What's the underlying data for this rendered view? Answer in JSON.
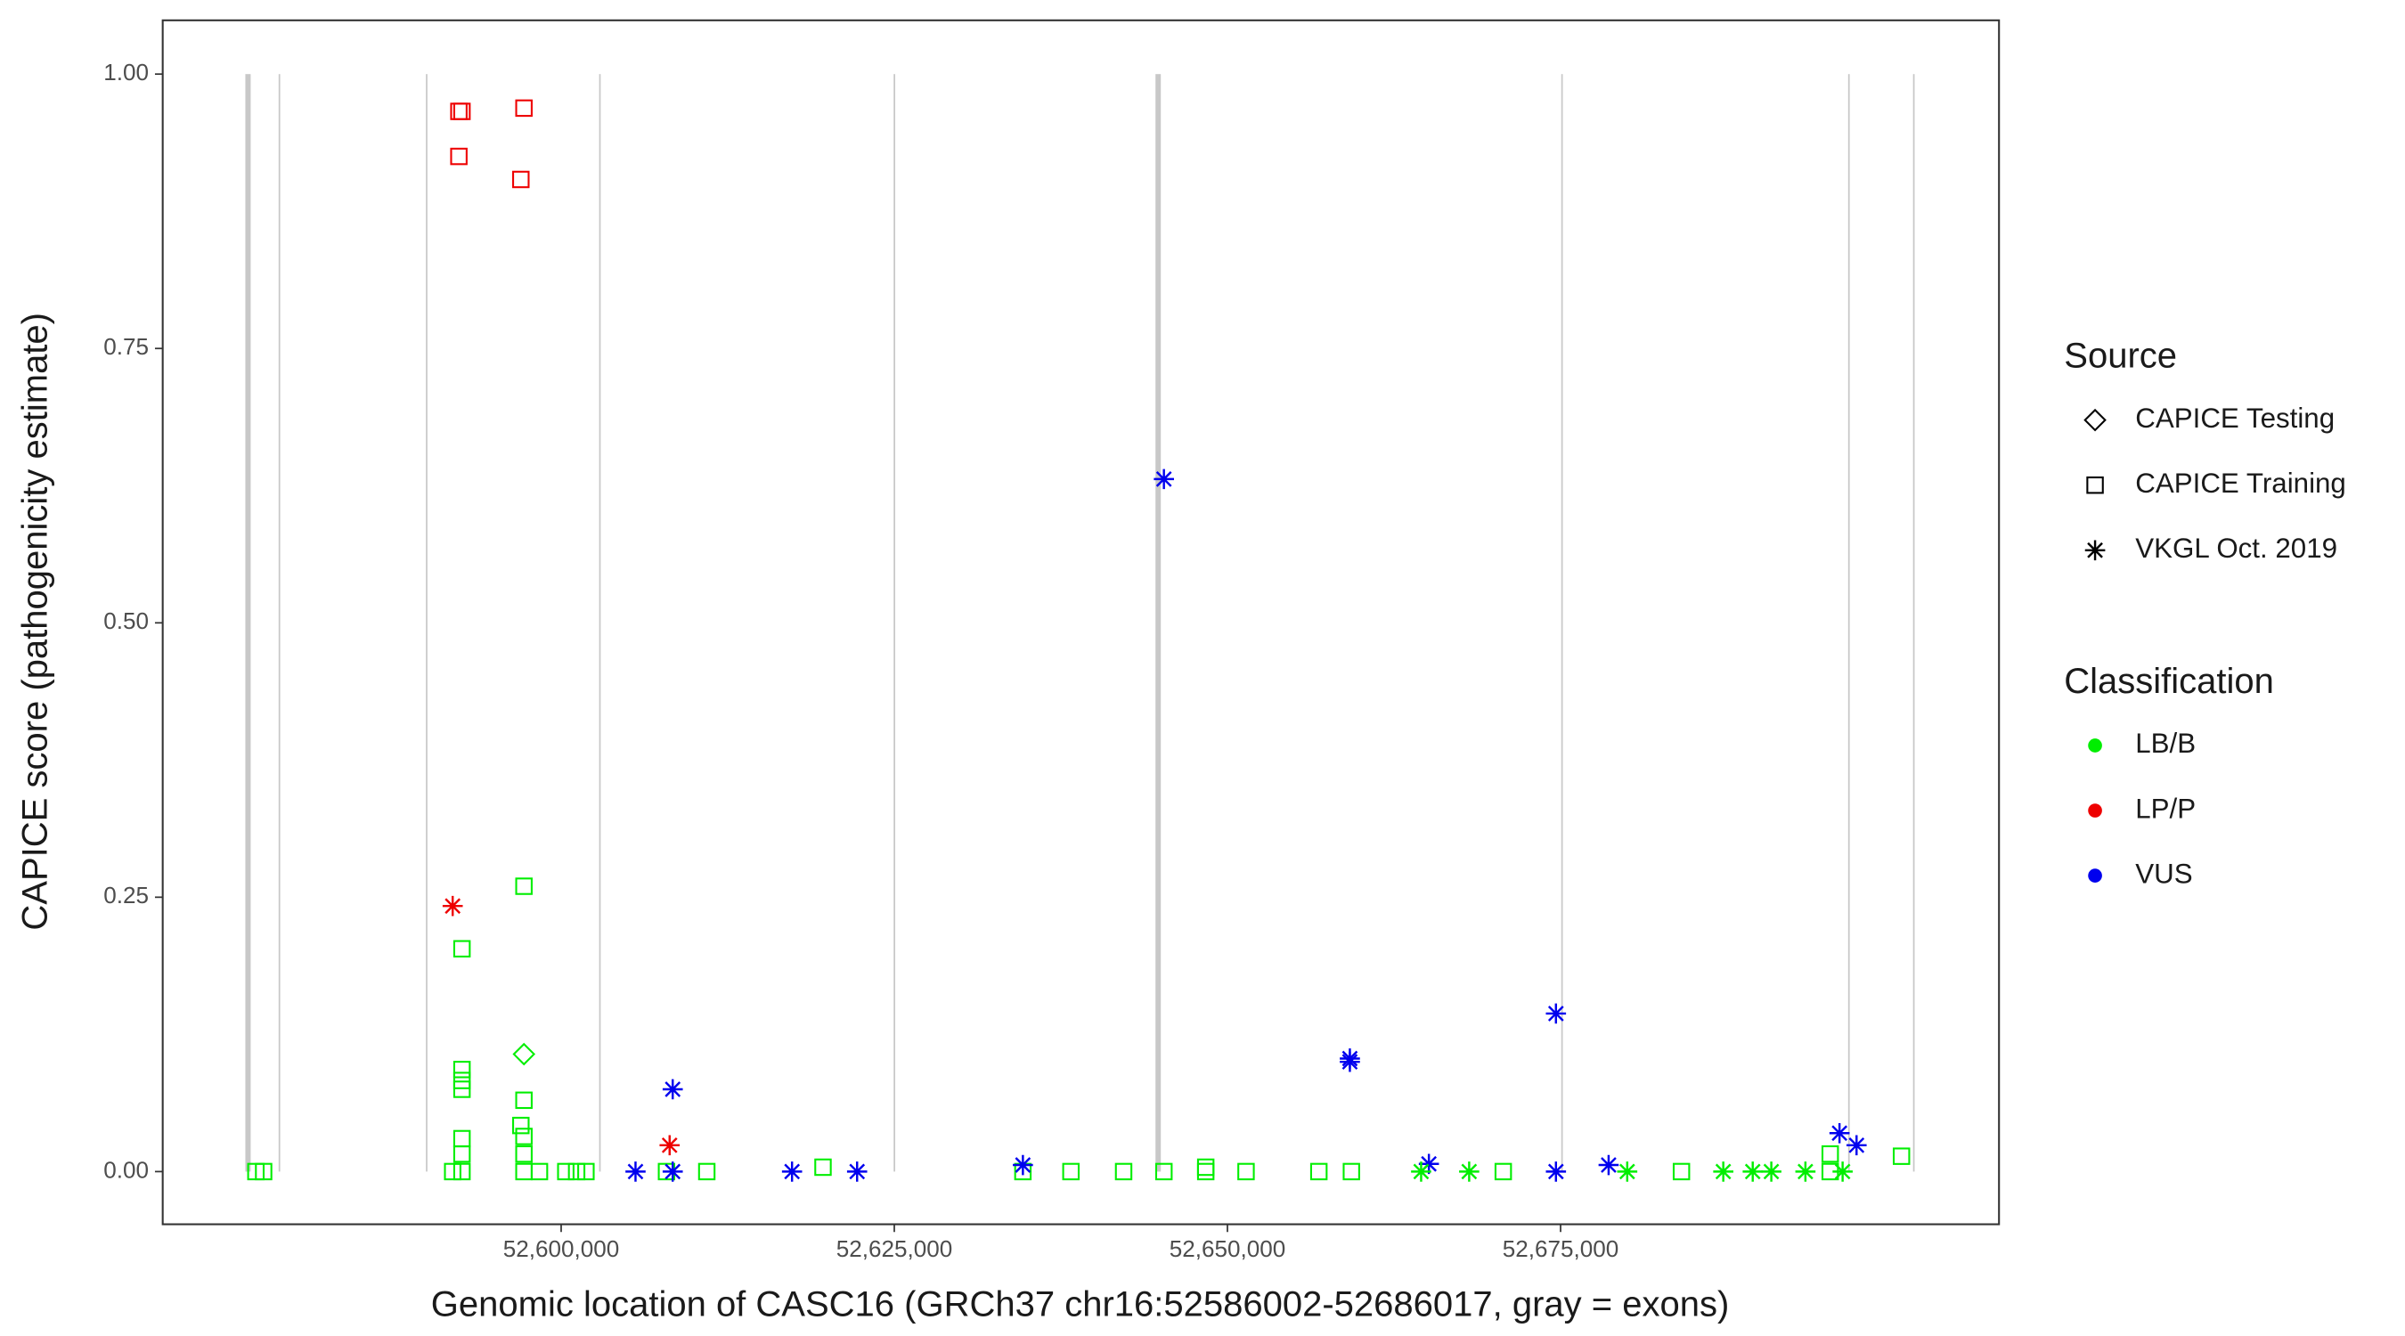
{
  "chart_data": {
    "type": "scatter",
    "x_label": "Genomic location of CASC16 (GRCh37 chr16:52586002-52686017, gray = exons)",
    "y_label": "CAPICE score (pathogenicity estimate)",
    "xlim": [
      52570100,
      52707900
    ],
    "ylim": [
      -0.048,
      1.049
    ],
    "xticks": [
      {
        "value": 52600000,
        "label": "52,600,000"
      },
      {
        "value": 52625000,
        "label": "52,625,000"
      },
      {
        "value": 52650000,
        "label": "52,650,000"
      },
      {
        "value": 52675000,
        "label": "52,675,000"
      }
    ],
    "yticks": [
      {
        "value": 0,
        "label": "0.00"
      },
      {
        "value": 0.25,
        "label": "0.25"
      },
      {
        "value": 0.5,
        "label": "0.50"
      },
      {
        "value": 0.75,
        "label": "0.75"
      },
      {
        "value": 1,
        "label": "1.00"
      }
    ],
    "exon_color": "#c8c8c8",
    "exons": [
      [
        52576300,
        52576700
      ],
      [
        52578800,
        52578900
      ],
      [
        52589850,
        52589950
      ],
      [
        52602850,
        52602950
      ],
      [
        52624950,
        52625050
      ],
      [
        52644600,
        52645000
      ],
      [
        52675050,
        52675150
      ],
      [
        52696580,
        52696680
      ],
      [
        52701450,
        52701550
      ]
    ],
    "legend_source": {
      "title": "Source",
      "entries": [
        "CAPICE Testing",
        "CAPICE Training",
        "VKGL Oct. 2019"
      ]
    },
    "legend_class": {
      "title": "Classification",
      "entries": [
        {
          "name": "LB/B",
          "color": "#00ee00"
        },
        {
          "name": "LP/P",
          "color": "#ee0000"
        },
        {
          "name": "VUS",
          "color": "#0000ee"
        }
      ]
    },
    "series": [
      {
        "source": "CAPICE Training",
        "classification": "LP/P",
        "x": [
          52592326,
          52592558,
          52592326,
          52597209,
          52596977
        ],
        "y": [
          0.966,
          0.966,
          0.925,
          0.969,
          0.904
        ]
      },
      {
        "source": "CAPICE Training",
        "classification": "LB/B",
        "x": [
          52577093,
          52577674,
          52592558,
          52592558,
          52592558,
          52592558,
          52592558,
          52592558,
          52592558,
          52591860,
          52597209,
          52597209,
          52596977,
          52597209,
          52597209,
          52597209,
          52598372,
          52600349,
          52601163,
          52601860,
          52607907,
          52610930,
          52619651,
          52634651,
          52638256,
          52642210,
          52645233,
          52648372,
          52648372,
          52651396,
          52656861,
          52659303,
          52670698,
          52684070,
          52695233,
          52695233,
          52700582
        ],
        "y": [
          0,
          0,
          0.203,
          0.093,
          0.083,
          0.075,
          0.03,
          0.016,
          0,
          0,
          0.26,
          0.065,
          0.042,
          0.032,
          0.016,
          0,
          0,
          0,
          0,
          0,
          0,
          0,
          0.004,
          0,
          0,
          0,
          0,
          0.004,
          0,
          0,
          0,
          0,
          0,
          0,
          0.016,
          0,
          0.014
        ]
      },
      {
        "source": "CAPICE Testing",
        "classification": "LB/B",
        "x": [
          52597209
        ],
        "y": [
          0.107
        ]
      },
      {
        "source": "VKGL Oct. 2019",
        "classification": "LP/P",
        "x": [
          52591860,
          52608140
        ],
        "y": [
          0.242,
          0.024
        ]
      },
      {
        "source": "VKGL Oct. 2019",
        "classification": "VUS",
        "x": [
          52645233,
          52605581,
          52608372,
          52608372,
          52617326,
          52622209,
          52634651,
          52659187,
          52659187,
          52665117,
          52674652,
          52674652,
          52678605,
          52695931,
          52697210
        ],
        "y": [
          0.631,
          0,
          0.075,
          0,
          0,
          0,
          0.006,
          0.103,
          0.1,
          0.007,
          0.144,
          0,
          0.006,
          0.035,
          0.024
        ]
      },
      {
        "source": "VKGL Oct. 2019",
        "classification": "LB/B",
        "x": [
          52664535,
          52668140,
          52680001,
          52687210,
          52689419,
          52690815,
          52693373,
          52696164
        ],
        "y": [
          0,
          0,
          0,
          0,
          0,
          0,
          0,
          0
        ]
      }
    ]
  }
}
